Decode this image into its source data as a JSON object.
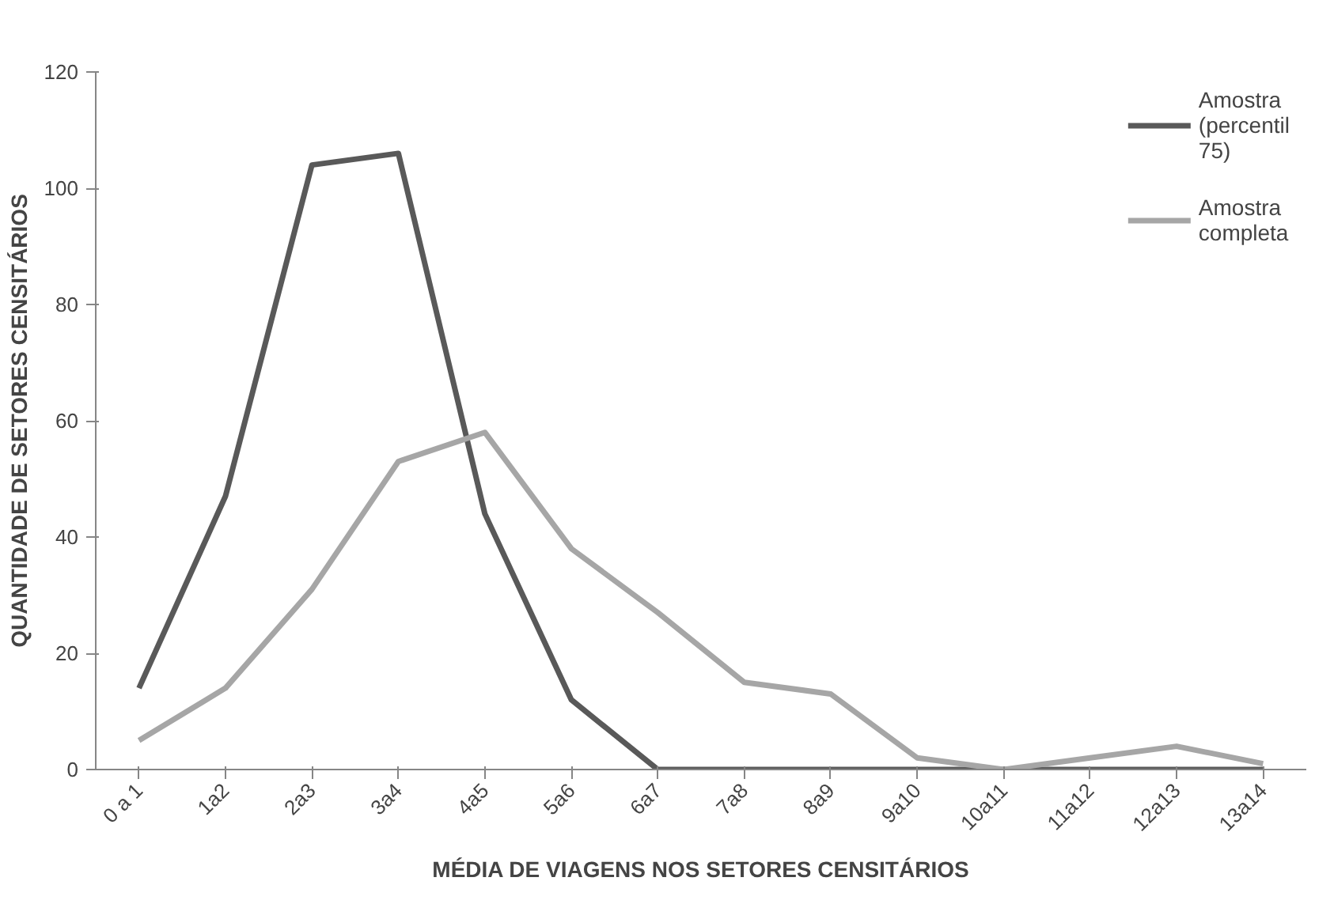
{
  "chart_data": {
    "type": "line",
    "xlabel": "MÉDIA DE VIAGENS NOS SETORES CENSITÁRIOS",
    "ylabel": "QUANTIDADE DE SETORES CENSITÁRIOS",
    "categories": [
      "0 a 1",
      "1a2",
      "2a3",
      "3a4",
      "4a5",
      "5a6",
      "6a7",
      "7a8",
      "8a9",
      "9a10",
      "10a11",
      "11a12",
      "12a13",
      "13a14"
    ],
    "series": [
      {
        "name": "Amostra (percentil 75)",
        "color": "#595959",
        "values": [
          14,
          47,
          104,
          106,
          44,
          12,
          0,
          0,
          0,
          0,
          0,
          0,
          0,
          0
        ]
      },
      {
        "name": "Amostra completa",
        "color": "#a6a6a6",
        "values": [
          5,
          14,
          31,
          53,
          58,
          38,
          27,
          15,
          13,
          2,
          0,
          2,
          4,
          1
        ]
      }
    ],
    "ylim": [
      0,
      120
    ],
    "yticks": [
      0,
      20,
      40,
      60,
      80,
      100,
      120
    ],
    "grid": false,
    "legend": "top right",
    "marker": "none",
    "line_style": "solid"
  }
}
